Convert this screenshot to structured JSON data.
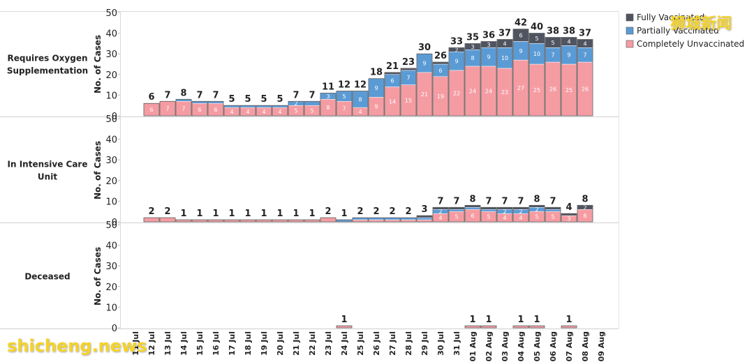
{
  "chart_data": {
    "type": "bar",
    "stacked": true,
    "categories": [
      "11 Jul",
      "12 Jul",
      "13 Jul",
      "14 Jul",
      "15 Jul",
      "16 Jul",
      "17 Jul",
      "18 Jul",
      "19 Jul",
      "20 Jul",
      "21 Jul",
      "22 Jul",
      "23 Jul",
      "24 Jul",
      "25 Jul",
      "26 Jul",
      "27 Jul",
      "28 Jul",
      "29 Jul",
      "30 Jul",
      "31 Jul",
      "01 Aug",
      "02 Aug",
      "03 Aug",
      "04 Aug",
      "05 Aug",
      "06 Aug",
      "07 Aug",
      "08 Aug",
      "09 Aug"
    ],
    "ylabel": "No. of Cases",
    "ylim": [
      0,
      50
    ],
    "yticks": [
      0,
      10,
      20,
      30,
      40,
      50
    ],
    "legend": [
      {
        "name": "Fully Vaccinated",
        "color": "#4f5460"
      },
      {
        "name": "Partially Vaccinated",
        "color": "#5b9bd5"
      },
      {
        "name": "Completely Unvaccinated",
        "color": "#f59ca3"
      }
    ],
    "panels": [
      {
        "name": "Requires Oxygen Supplementation",
        "label_lines": [
          "Requires Oxygen",
          "Supplementation"
        ],
        "unvaccinated": [
          null,
          6,
          7,
          7,
          6,
          6,
          4,
          4,
          4,
          4,
          5,
          5,
          8,
          7,
          4,
          9,
          14,
          15,
          21,
          19,
          22,
          24,
          24,
          23,
          27,
          25,
          26,
          25,
          26,
          null
        ],
        "partially": [
          null,
          0,
          0,
          1,
          1,
          1,
          1,
          1,
          1,
          1,
          2,
          2,
          3,
          5,
          8,
          9,
          6,
          7,
          9,
          6,
          9,
          8,
          9,
          10,
          9,
          10,
          7,
          9,
          7,
          null
        ],
        "fully": [
          null,
          0,
          0,
          0,
          0,
          0,
          0,
          0,
          0,
          0,
          0,
          0,
          0,
          0,
          0,
          0,
          1,
          1,
          0,
          1,
          2,
          3,
          3,
          4,
          6,
          5,
          5,
          4,
          4,
          null
        ],
        "totals": [
          null,
          6,
          7,
          8,
          7,
          7,
          5,
          5,
          5,
          5,
          7,
          7,
          11,
          12,
          12,
          18,
          21,
          23,
          30,
          26,
          33,
          35,
          36,
          37,
          42,
          40,
          38,
          38,
          37,
          null
        ],
        "inner_labels": {
          "unvaccinated": [
            null,
            "6",
            "7",
            "7",
            "6",
            "6",
            "4",
            "4",
            "4",
            "4",
            "5",
            "5",
            "8",
            "7",
            "4",
            "9",
            "14",
            "15",
            "21",
            "19",
            "22",
            "24",
            "24",
            "23",
            "27",
            "25",
            "26",
            "25",
            "26",
            null
          ],
          "partially": [
            null,
            null,
            null,
            null,
            null,
            null,
            null,
            null,
            null,
            null,
            "2",
            null,
            "3",
            "5",
            "8",
            "9",
            "6",
            "7",
            "9",
            "6",
            "9",
            "8",
            "9",
            "10",
            "9",
            "10",
            "7",
            "9",
            "7",
            null
          ],
          "fully": [
            null,
            null,
            null,
            null,
            null,
            null,
            null,
            null,
            null,
            null,
            null,
            null,
            null,
            null,
            null,
            null,
            null,
            null,
            null,
            null,
            "2",
            "3",
            "3",
            "4",
            "6",
            "5",
            "5",
            "4",
            "4",
            null
          ]
        }
      },
      {
        "name": "In Intensive Care Unit",
        "label_lines": [
          "In Intensive Care",
          "Unit"
        ],
        "unvaccinated": [
          null,
          2,
          2,
          1,
          1,
          1,
          1,
          1,
          1,
          1,
          1,
          1,
          2,
          0,
          1,
          1,
          1,
          1,
          1,
          4,
          5,
          6,
          5,
          4,
          4,
          5,
          5,
          3,
          6,
          null
        ],
        "partially": [
          null,
          0,
          0,
          0,
          0,
          0,
          0,
          0,
          0,
          0,
          0,
          0,
          0,
          1,
          1,
          1,
          1,
          1,
          1,
          2,
          1,
          1,
          1,
          2,
          2,
          2,
          1,
          0,
          0,
          null
        ],
        "fully": [
          null,
          0,
          0,
          0,
          0,
          0,
          0,
          0,
          0,
          0,
          0,
          0,
          0,
          0,
          0,
          0,
          0,
          0,
          1,
          1,
          1,
          1,
          1,
          1,
          1,
          1,
          1,
          1,
          2,
          null
        ],
        "totals": [
          null,
          2,
          2,
          1,
          1,
          1,
          1,
          1,
          1,
          1,
          1,
          1,
          2,
          1,
          2,
          2,
          2,
          2,
          3,
          7,
          7,
          8,
          7,
          7,
          7,
          8,
          7,
          4,
          8,
          null
        ],
        "inner_labels": {
          "unvaccinated": [
            null,
            null,
            null,
            null,
            null,
            null,
            null,
            null,
            null,
            null,
            null,
            null,
            null,
            null,
            null,
            null,
            null,
            null,
            null,
            "4",
            "5",
            "6",
            "5",
            "4",
            "4",
            "5",
            "5",
            "3",
            "6",
            null
          ],
          "partially": [
            null,
            null,
            null,
            null,
            null,
            null,
            null,
            null,
            null,
            null,
            null,
            null,
            null,
            null,
            null,
            null,
            null,
            null,
            null,
            "2",
            null,
            null,
            null,
            "2",
            "2",
            "2",
            null,
            null,
            null,
            null
          ],
          "fully": [
            null,
            null,
            null,
            null,
            null,
            null,
            null,
            null,
            null,
            null,
            null,
            null,
            null,
            null,
            null,
            null,
            null,
            null,
            null,
            null,
            null,
            null,
            null,
            null,
            null,
            null,
            null,
            null,
            "2",
            null
          ]
        }
      },
      {
        "name": "Deceased",
        "label_lines": [
          "Deceased"
        ],
        "unvaccinated": [
          null,
          null,
          null,
          null,
          null,
          null,
          null,
          null,
          null,
          null,
          null,
          null,
          null,
          1,
          null,
          null,
          null,
          null,
          null,
          null,
          null,
          1,
          1,
          null,
          1,
          1,
          null,
          1,
          null,
          null
        ],
        "partially": [
          null,
          null,
          null,
          null,
          null,
          null,
          null,
          null,
          null,
          null,
          null,
          null,
          null,
          0,
          null,
          null,
          null,
          null,
          null,
          null,
          null,
          0,
          0,
          null,
          0,
          0,
          null,
          0,
          null,
          null
        ],
        "fully": [
          null,
          null,
          null,
          null,
          null,
          null,
          null,
          null,
          null,
          null,
          null,
          null,
          null,
          0,
          null,
          null,
          null,
          null,
          null,
          null,
          null,
          0,
          0,
          null,
          0,
          0,
          null,
          0,
          null,
          null
        ],
        "totals": [
          null,
          null,
          null,
          null,
          null,
          null,
          null,
          null,
          null,
          null,
          null,
          null,
          null,
          1,
          null,
          null,
          null,
          null,
          null,
          null,
          null,
          1,
          1,
          null,
          1,
          1,
          null,
          1,
          null,
          null
        ],
        "inner_labels": {
          "unvaccinated": [],
          "partially": [],
          "fully": []
        }
      }
    ]
  },
  "watermarks": {
    "top_right": "狮城新闻",
    "bottom_left": "shicheng.news"
  }
}
